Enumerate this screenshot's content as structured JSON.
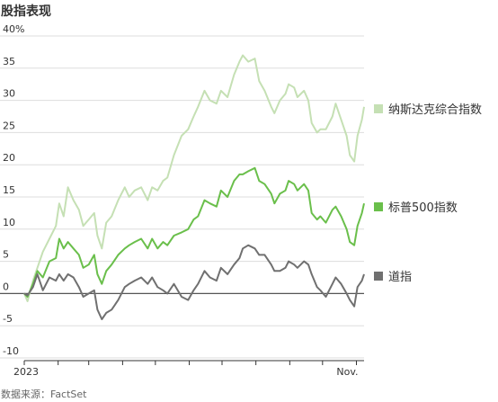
{
  "title": "股指表现",
  "source": "数据来源：FactSet",
  "chart_data": {
    "type": "line",
    "x_range": [
      "2023-01-01",
      "2023-11-08"
    ],
    "x_tick_labels": [
      {
        "label": "2023",
        "date": "2023-01-01"
      },
      {
        "label": "Nov.",
        "date": "2023-11-01"
      }
    ],
    "x_tick_marks_monthly": true,
    "ylim": [
      -10,
      40
    ],
    "y_ticks": [
      {
        "value": 40,
        "label": "40%"
      },
      {
        "value": 35,
        "label": "35"
      },
      {
        "value": 30,
        "label": "30"
      },
      {
        "value": 25,
        "label": "25"
      },
      {
        "value": 20,
        "label": "20"
      },
      {
        "value": 15,
        "label": "15"
      },
      {
        "value": 10,
        "label": "10"
      },
      {
        "value": 5,
        "label": "5"
      },
      {
        "value": 0,
        "label": "0"
      },
      {
        "value": -5,
        "label": "-5"
      },
      {
        "value": -10,
        "label": "-10"
      }
    ],
    "grid": true,
    "legend_position": "right",
    "series": [
      {
        "name": "纳斯达克综合指数",
        "color": "#c5e0b4",
        "points": [
          [
            "2023-01-01",
            0
          ],
          [
            "2023-01-04",
            -1.2
          ],
          [
            "2023-01-09",
            2
          ],
          [
            "2023-01-13",
            4
          ],
          [
            "2023-01-18",
            6.5
          ],
          [
            "2023-01-24",
            8.5
          ],
          [
            "2023-01-30",
            10.5
          ],
          [
            "2023-02-02",
            14
          ],
          [
            "2023-02-06",
            12
          ],
          [
            "2023-02-10",
            16.5
          ],
          [
            "2023-02-15",
            14.5
          ],
          [
            "2023-02-20",
            13
          ],
          [
            "2023-02-24",
            10.5
          ],
          [
            "2023-03-01",
            11.5
          ],
          [
            "2023-03-06",
            12.5
          ],
          [
            "2023-03-09",
            9
          ],
          [
            "2023-03-13",
            7
          ],
          [
            "2023-03-17",
            11
          ],
          [
            "2023-03-22",
            12
          ],
          [
            "2023-03-28",
            14.5
          ],
          [
            "2023-04-03",
            16.5
          ],
          [
            "2023-04-07",
            15
          ],
          [
            "2023-04-12",
            16
          ],
          [
            "2023-04-18",
            16.5
          ],
          [
            "2023-04-24",
            14.5
          ],
          [
            "2023-04-28",
            16.5
          ],
          [
            "2023-05-03",
            16
          ],
          [
            "2023-05-08",
            17.5
          ],
          [
            "2023-05-12",
            18
          ],
          [
            "2023-05-18",
            21.5
          ],
          [
            "2023-05-25",
            24.5
          ],
          [
            "2023-05-31",
            25.5
          ],
          [
            "2023-06-05",
            27.5
          ],
          [
            "2023-06-09",
            29
          ],
          [
            "2023-06-15",
            31.5
          ],
          [
            "2023-06-20",
            30
          ],
          [
            "2023-06-26",
            29.5
          ],
          [
            "2023-06-30",
            31.5
          ],
          [
            "2023-07-06",
            30.5
          ],
          [
            "2023-07-12",
            34
          ],
          [
            "2023-07-17",
            36
          ],
          [
            "2023-07-20",
            37
          ],
          [
            "2023-07-25",
            36
          ],
          [
            "2023-07-31",
            36.5
          ],
          [
            "2023-08-04",
            33
          ],
          [
            "2023-08-09",
            31.5
          ],
          [
            "2023-08-15",
            29
          ],
          [
            "2023-08-18",
            28
          ],
          [
            "2023-08-23",
            30
          ],
          [
            "2023-08-28",
            31
          ],
          [
            "2023-08-31",
            32.5
          ],
          [
            "2023-09-05",
            32
          ],
          [
            "2023-09-08",
            30.5
          ],
          [
            "2023-09-14",
            31.5
          ],
          [
            "2023-09-18",
            30
          ],
          [
            "2023-09-21",
            26.5
          ],
          [
            "2023-09-26",
            25
          ],
          [
            "2023-09-29",
            25.5
          ],
          [
            "2023-10-04",
            25.5
          ],
          [
            "2023-10-10",
            27.5
          ],
          [
            "2023-10-13",
            29.5
          ],
          [
            "2023-10-18",
            27
          ],
          [
            "2023-10-23",
            24.5
          ],
          [
            "2023-10-26",
            21.5
          ],
          [
            "2023-10-30",
            20.5
          ],
          [
            "2023-11-02",
            24.5
          ],
          [
            "2023-11-06",
            27
          ],
          [
            "2023-11-08",
            29
          ]
        ]
      },
      {
        "name": "标普500指数",
        "color": "#6abf4b",
        "points": [
          [
            "2023-01-01",
            0
          ],
          [
            "2023-01-04",
            -0.5
          ],
          [
            "2023-01-09",
            1.5
          ],
          [
            "2023-01-13",
            3.5
          ],
          [
            "2023-01-18",
            2.5
          ],
          [
            "2023-01-24",
            5
          ],
          [
            "2023-01-30",
            5.5
          ],
          [
            "2023-02-02",
            8.5
          ],
          [
            "2023-02-06",
            7
          ],
          [
            "2023-02-10",
            8
          ],
          [
            "2023-02-15",
            7
          ],
          [
            "2023-02-20",
            6
          ],
          [
            "2023-02-24",
            4
          ],
          [
            "2023-03-01",
            4.5
          ],
          [
            "2023-03-06",
            6
          ],
          [
            "2023-03-09",
            3
          ],
          [
            "2023-03-13",
            1.5
          ],
          [
            "2023-03-17",
            3.5
          ],
          [
            "2023-03-22",
            4.5
          ],
          [
            "2023-03-28",
            6
          ],
          [
            "2023-04-03",
            7
          ],
          [
            "2023-04-07",
            7.5
          ],
          [
            "2023-04-12",
            8
          ],
          [
            "2023-04-18",
            8.5
          ],
          [
            "2023-04-24",
            7
          ],
          [
            "2023-04-28",
            8.5
          ],
          [
            "2023-05-03",
            7
          ],
          [
            "2023-05-08",
            8
          ],
          [
            "2023-05-12",
            7.5
          ],
          [
            "2023-05-18",
            9
          ],
          [
            "2023-05-25",
            9.5
          ],
          [
            "2023-05-31",
            10
          ],
          [
            "2023-06-05",
            11.5
          ],
          [
            "2023-06-09",
            12
          ],
          [
            "2023-06-15",
            14.5
          ],
          [
            "2023-06-20",
            14
          ],
          [
            "2023-06-26",
            13.5
          ],
          [
            "2023-06-30",
            16
          ],
          [
            "2023-07-06",
            15
          ],
          [
            "2023-07-12",
            17.5
          ],
          [
            "2023-07-17",
            18.5
          ],
          [
            "2023-07-20",
            18.5
          ],
          [
            "2023-07-25",
            19
          ],
          [
            "2023-07-31",
            19.5
          ],
          [
            "2023-08-04",
            17.5
          ],
          [
            "2023-08-09",
            17
          ],
          [
            "2023-08-15",
            15.5
          ],
          [
            "2023-08-18",
            14
          ],
          [
            "2023-08-23",
            15.5
          ],
          [
            "2023-08-28",
            16
          ],
          [
            "2023-08-31",
            17.5
          ],
          [
            "2023-09-05",
            17
          ],
          [
            "2023-09-08",
            16
          ],
          [
            "2023-09-14",
            17
          ],
          [
            "2023-09-18",
            16
          ],
          [
            "2023-09-21",
            12.5
          ],
          [
            "2023-09-26",
            11.5
          ],
          [
            "2023-09-29",
            12
          ],
          [
            "2023-10-04",
            11
          ],
          [
            "2023-10-10",
            13
          ],
          [
            "2023-10-13",
            13.5
          ],
          [
            "2023-10-18",
            12
          ],
          [
            "2023-10-23",
            10
          ],
          [
            "2023-10-26",
            8
          ],
          [
            "2023-10-30",
            7.5
          ],
          [
            "2023-11-02",
            10.5
          ],
          [
            "2023-11-06",
            12.5
          ],
          [
            "2023-11-08",
            14
          ]
        ]
      },
      {
        "name": "道指",
        "color": "#707070",
        "points": [
          [
            "2023-01-01",
            0
          ],
          [
            "2023-01-04",
            -0.3
          ],
          [
            "2023-01-09",
            1
          ],
          [
            "2023-01-13",
            3
          ],
          [
            "2023-01-18",
            0.5
          ],
          [
            "2023-01-24",
            2.5
          ],
          [
            "2023-01-30",
            2
          ],
          [
            "2023-02-02",
            3
          ],
          [
            "2023-02-06",
            2
          ],
          [
            "2023-02-10",
            3
          ],
          [
            "2023-02-15",
            2.5
          ],
          [
            "2023-02-20",
            1
          ],
          [
            "2023-02-24",
            -0.5
          ],
          [
            "2023-03-01",
            0
          ],
          [
            "2023-03-06",
            0.5
          ],
          [
            "2023-03-09",
            -2.5
          ],
          [
            "2023-03-13",
            -4
          ],
          [
            "2023-03-17",
            -3
          ],
          [
            "2023-03-22",
            -2.5
          ],
          [
            "2023-03-28",
            -1
          ],
          [
            "2023-04-03",
            1
          ],
          [
            "2023-04-07",
            1.5
          ],
          [
            "2023-04-12",
            2
          ],
          [
            "2023-04-18",
            2.5
          ],
          [
            "2023-04-24",
            1.5
          ],
          [
            "2023-04-28",
            2.5
          ],
          [
            "2023-05-03",
            1
          ],
          [
            "2023-05-08",
            0.5
          ],
          [
            "2023-05-12",
            0
          ],
          [
            "2023-05-18",
            1.5
          ],
          [
            "2023-05-25",
            -0.5
          ],
          [
            "2023-05-31",
            -1
          ],
          [
            "2023-06-05",
            0.5
          ],
          [
            "2023-06-09",
            1.5
          ],
          [
            "2023-06-15",
            3.5
          ],
          [
            "2023-06-20",
            2.5
          ],
          [
            "2023-06-26",
            2
          ],
          [
            "2023-06-30",
            4
          ],
          [
            "2023-07-06",
            3
          ],
          [
            "2023-07-12",
            4.5
          ],
          [
            "2023-07-17",
            5.5
          ],
          [
            "2023-07-20",
            7
          ],
          [
            "2023-07-25",
            7.5
          ],
          [
            "2023-07-31",
            7
          ],
          [
            "2023-08-04",
            6
          ],
          [
            "2023-08-09",
            6
          ],
          [
            "2023-08-15",
            4.5
          ],
          [
            "2023-08-18",
            3.5
          ],
          [
            "2023-08-23",
            3.5
          ],
          [
            "2023-08-28",
            4
          ],
          [
            "2023-08-31",
            5
          ],
          [
            "2023-09-05",
            4.5
          ],
          [
            "2023-09-08",
            4
          ],
          [
            "2023-09-14",
            5
          ],
          [
            "2023-09-18",
            4.5
          ],
          [
            "2023-09-21",
            3
          ],
          [
            "2023-09-26",
            1
          ],
          [
            "2023-09-29",
            0.5
          ],
          [
            "2023-10-04",
            -0.5
          ],
          [
            "2023-10-10",
            1.5
          ],
          [
            "2023-10-13",
            2.5
          ],
          [
            "2023-10-18",
            1.5
          ],
          [
            "2023-10-23",
            0
          ],
          [
            "2023-10-26",
            -1
          ],
          [
            "2023-10-30",
            -2
          ],
          [
            "2023-11-02",
            1
          ],
          [
            "2023-11-06",
            2
          ],
          [
            "2023-11-08",
            3
          ]
        ]
      }
    ]
  }
}
